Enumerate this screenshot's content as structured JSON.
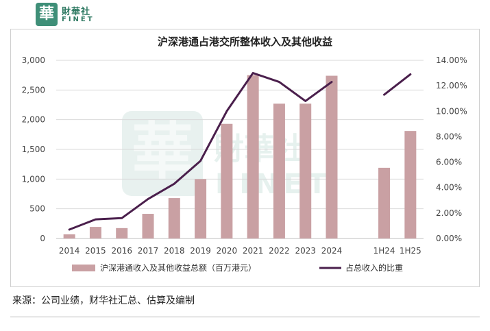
{
  "logo": {
    "badge": "華",
    "cn": "財華社",
    "en": "FINET"
  },
  "watermark": {
    "cn": "財華社",
    "en": "FINET",
    "badge": "華"
  },
  "source": "来源：公司业绩，财华社汇总、估算及编制",
  "colors": {
    "bar": "#c9a0a3",
    "line": "#4a1f4c",
    "grid": "#d9d9d9",
    "brand": "#3f8f78"
  },
  "chart_data": {
    "type": "bar",
    "title": "沪深港通占港交所整体收入及其他收益",
    "categories": [
      "2014",
      "2015",
      "2016",
      "2017",
      "2018",
      "2019",
      "2020",
      "2021",
      "2022",
      "2023",
      "2024",
      "",
      "1H24",
      "1H25"
    ],
    "series": [
      {
        "name": "沪深港通收入及其他收益总额（百万港元）",
        "type": "bar",
        "axis": "left",
        "values": [
          70,
          195,
          175,
          415,
          680,
          1000,
          1930,
          2750,
          2270,
          2270,
          2740,
          null,
          1190,
          1810
        ]
      },
      {
        "name": "占总收入的比重",
        "type": "line",
        "axis": "right",
        "values": [
          0.7,
          1.5,
          1.6,
          3.1,
          4.3,
          6.1,
          10.0,
          13.0,
          12.3,
          10.8,
          12.3,
          null,
          11.3,
          12.9
        ]
      }
    ],
    "y_left": {
      "min": 0,
      "max": 3000,
      "ticks": [
        "0",
        "500",
        "1,000",
        "1,500",
        "2,000",
        "2,500",
        "3,000"
      ]
    },
    "y_right": {
      "min": 0,
      "max": 14,
      "ticks": [
        "0.00%",
        "2.00%",
        "4.00%",
        "6.00%",
        "8.00%",
        "10.00%",
        "12.00%",
        "14.00%"
      ]
    },
    "grid": true,
    "legend": "bottom"
  }
}
